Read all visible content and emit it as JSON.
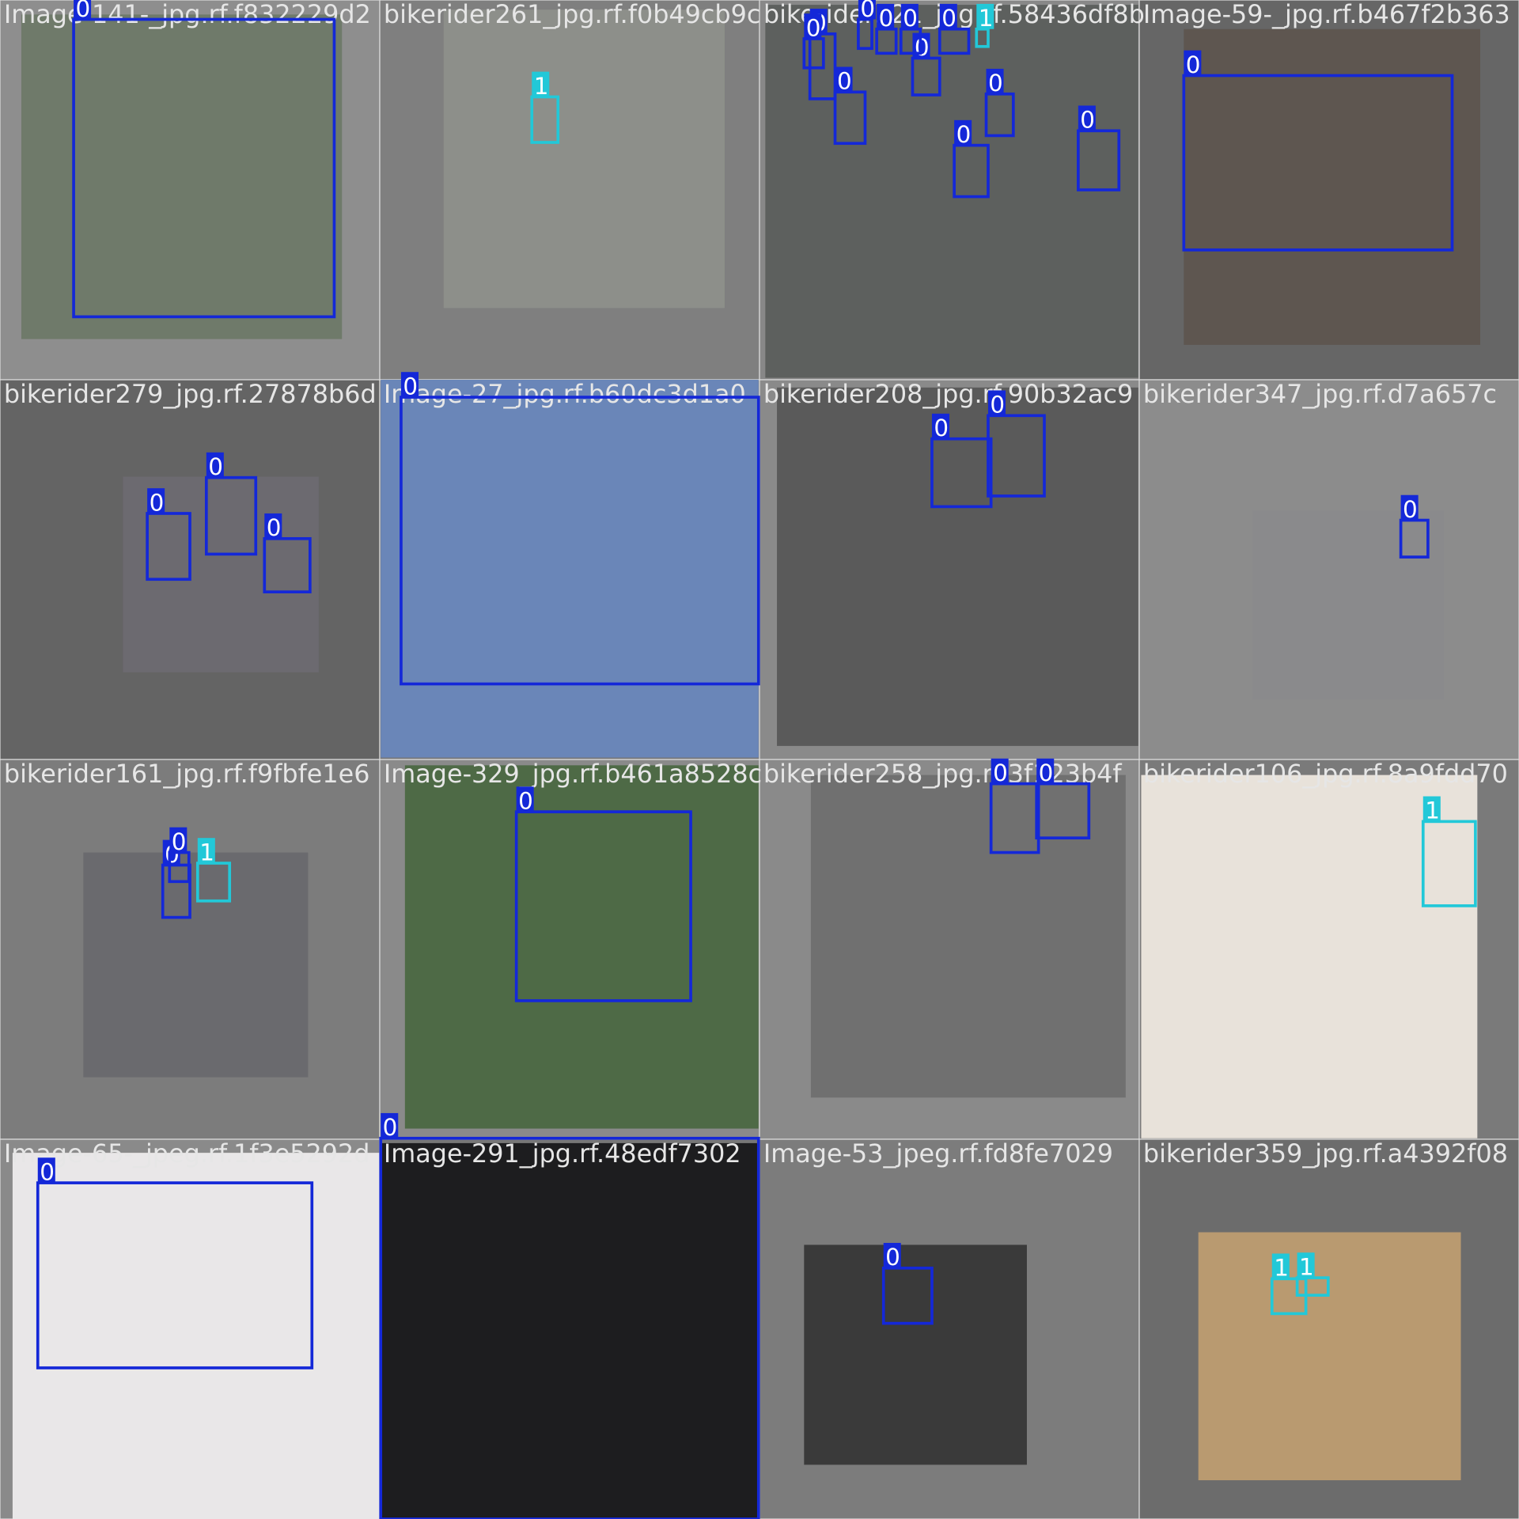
{
  "tiles": [
    {
      "filename": "Image-141-_jpg.rf.f832229d2",
      "boxes": [
        "0"
      ]
    },
    {
      "filename": "bikerider261_jpg.rf.f0b49cb9c",
      "boxes": [
        "1"
      ]
    },
    {
      "filename": "bikerider321_jpg.rf.58436df8b",
      "boxes": [
        "0",
        "0",
        "0",
        "0",
        "0",
        "0",
        "0",
        "0",
        "0",
        "0",
        "0",
        "1"
      ]
    },
    {
      "filename": "Image-59-_jpg.rf.b467f2b363",
      "boxes": [
        "0"
      ]
    },
    {
      "filename": "bikerider279_jpg.rf.27878b6d",
      "boxes": [
        "0",
        "0",
        "0"
      ]
    },
    {
      "filename": "Image-27_jpg.rf.b60dc3d1a0",
      "boxes": [
        "0"
      ]
    },
    {
      "filename": "bikerider208_jpg.rf.90b32ac9",
      "boxes": [
        "0",
        "0"
      ]
    },
    {
      "filename": "bikerider347_jpg.rf.d7a657c",
      "boxes": [
        "0"
      ]
    },
    {
      "filename": "bikerider161_jpg.rf.f9fbfe1e6",
      "boxes": [
        "0",
        "0",
        "1"
      ]
    },
    {
      "filename": "Image-329_jpg.rf.b461a8528c",
      "boxes": [
        "0"
      ]
    },
    {
      "filename": "bikerider258_jpg.rf.3f123b4f",
      "boxes": [
        "0",
        "0"
      ]
    },
    {
      "filename": "bikerider106_jpg.rf.8a9fdd70",
      "boxes": [
        "1"
      ]
    },
    {
      "filename": "Image-65-_jpeg.rf.1f3e5292d",
      "boxes": [
        "0"
      ]
    },
    {
      "filename": "Image-291_jpg.rf.48edf7302",
      "boxes": [
        "0"
      ]
    },
    {
      "filename": "Image-53_jpeg.rf.fd8fe7029",
      "boxes": [
        "0"
      ]
    },
    {
      "filename": "bikerider359_jpg.rf.a4392f08",
      "boxes": [
        "1",
        "1"
      ]
    }
  ]
}
